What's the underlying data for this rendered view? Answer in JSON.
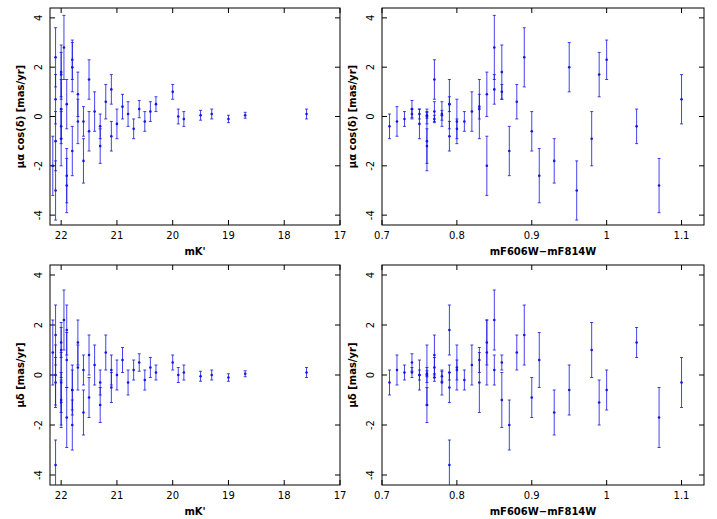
{
  "chart_data": [
    {
      "type": "scatter",
      "x_label": "mK'",
      "y_label": "μα cos(δ) [mas/yr]",
      "color": "#1414e6",
      "marker": "errorbar",
      "xlim": [
        22.2,
        17
      ],
      "ylim": [
        -4.4,
        4.4
      ],
      "xticks": [
        22,
        21,
        20,
        19,
        18,
        17
      ],
      "yticks": [
        -4,
        -2,
        0,
        2,
        4
      ],
      "x": [
        17.6,
        18.7,
        19.0,
        19.3,
        19.5,
        19.8,
        19.9,
        20.0,
        20.3,
        20.4,
        20.5,
        20.6,
        20.7,
        20.8,
        20.9,
        21.0,
        21.1,
        21.1,
        21.2,
        21.3,
        21.4,
        21.5,
        21.5,
        21.6,
        21.7,
        21.7,
        21.8,
        21.8,
        21.9,
        21.9,
        22.0,
        22.0,
        22.0,
        22.1,
        22.1,
        22.1,
        22.0,
        21.9,
        22.1,
        21.8,
        22.0,
        21.6,
        21.3,
        22.15,
        21.95
      ],
      "values": [
        0.1,
        0.05,
        -0.1,
        0.1,
        0.05,
        -0.1,
        0.0,
        1.0,
        0.5,
        0.2,
        -0.2,
        0.3,
        -0.5,
        0.1,
        0.4,
        -0.3,
        1.1,
        -0.8,
        0.6,
        -1.2,
        0.2,
        -0.6,
        1.5,
        -1.8,
        0.9,
        -0.2,
        2.0,
        -1.4,
        0.5,
        -2.4,
        1.8,
        -0.9,
        0.3,
        -3.0,
        2.4,
        -1.0,
        -0.4,
        -2.8,
        0.7,
        2.3,
        1.7,
        -0.2,
        -0.4,
        -2.0,
        2.8
      ],
      "errors": [
        0.2,
        0.12,
        0.15,
        0.2,
        0.2,
        0.3,
        0.3,
        0.3,
        0.3,
        0.4,
        0.4,
        0.35,
        0.4,
        0.5,
        0.5,
        0.6,
        0.6,
        0.6,
        0.7,
        0.7,
        0.8,
        0.8,
        0.8,
        0.9,
        0.9,
        0.9,
        1.0,
        1.0,
        1.0,
        1.1,
        1.1,
        1.1,
        1.2,
        1.2,
        1.2,
        1.2,
        0.7,
        1.1,
        1.0,
        0.8,
        0.9,
        0.6,
        0.5,
        1.2,
        1.3
      ]
    },
    {
      "type": "scatter",
      "x_label": "mF606W−mF814W",
      "y_label": "μα cos(δ) [mas/yr]",
      "color": "#1414e6",
      "marker": "errorbar",
      "xlim": [
        0.7,
        1.13
      ],
      "ylim": [
        -4.4,
        4.4
      ],
      "xticks": [
        0.7,
        0.8,
        0.9,
        1,
        1.1
      ],
      "yticks": [
        -4,
        -2,
        0,
        2,
        4
      ],
      "x": [
        0.74,
        0.76,
        0.77,
        0.75,
        0.78,
        0.73,
        0.76,
        0.86,
        0.79,
        0.77,
        0.81,
        0.74,
        0.8,
        0.78,
        0.83,
        0.75,
        0.85,
        0.79,
        0.88,
        0.76,
        0.82,
        0.9,
        0.77,
        0.93,
        0.84,
        0.8,
        0.95,
        0.87,
        0.79,
        0.91,
        0.86,
        0.98,
        0.83,
        0.96,
        0.89,
        0.76,
        1.04,
        1.07,
        1.1,
        1.0,
        0.99,
        0.72,
        0.71,
        0.84,
        0.85
      ],
      "values": [
        0.1,
        0.05,
        -0.1,
        0.1,
        0.05,
        -0.1,
        0.0,
        1.0,
        0.5,
        0.2,
        -0.2,
        0.3,
        -0.5,
        0.1,
        0.4,
        -0.3,
        1.1,
        -0.8,
        0.6,
        -1.2,
        0.2,
        -0.6,
        1.5,
        -1.8,
        0.9,
        -0.2,
        2.0,
        -1.4,
        0.5,
        -2.4,
        1.8,
        -0.9,
        0.3,
        -3.0,
        2.4,
        -1.0,
        -0.4,
        -2.8,
        0.7,
        2.3,
        1.7,
        -0.2,
        -0.4,
        -2.0,
        2.8
      ],
      "errors": [
        0.2,
        0.12,
        0.15,
        0.2,
        0.2,
        0.3,
        0.3,
        0.3,
        0.3,
        0.4,
        0.4,
        0.35,
        0.4,
        0.5,
        0.5,
        0.6,
        0.6,
        0.6,
        0.7,
        0.7,
        0.8,
        0.8,
        0.8,
        0.9,
        0.9,
        0.9,
        1.0,
        1.0,
        1.0,
        1.1,
        1.1,
        1.1,
        1.2,
        1.2,
        1.2,
        1.2,
        0.7,
        1.1,
        1.0,
        0.8,
        0.9,
        0.6,
        0.5,
        1.2,
        1.3
      ]
    },
    {
      "type": "scatter",
      "x_label": "mK'",
      "y_label": "μδ [mas/yr]",
      "color": "#1414e6",
      "marker": "errorbar",
      "xlim": [
        22.2,
        17
      ],
      "ylim": [
        -4.4,
        4.4
      ],
      "xticks": [
        22,
        21,
        20,
        19,
        18,
        17
      ],
      "yticks": [
        -4,
        -2,
        0,
        2,
        4
      ],
      "x": [
        17.6,
        18.7,
        19.0,
        19.3,
        19.5,
        19.8,
        19.9,
        20.0,
        20.3,
        20.4,
        20.5,
        20.6,
        20.7,
        20.8,
        20.9,
        21.0,
        21.1,
        21.1,
        21.2,
        21.3,
        21.4,
        21.5,
        21.5,
        21.6,
        21.7,
        21.7,
        21.8,
        21.8,
        21.9,
        21.9,
        22.0,
        22.0,
        22.0,
        22.1,
        22.1,
        22.1,
        22.0,
        21.9,
        22.1,
        21.8,
        22.0,
        21.6,
        21.3,
        22.15,
        21.95
      ],
      "values": [
        0.1,
        0.05,
        -0.1,
        0.0,
        -0.05,
        0.1,
        0.0,
        0.5,
        0.1,
        0.3,
        -0.2,
        0.5,
        0.2,
        -0.3,
        0.6,
        0.0,
        0.2,
        -0.5,
        0.9,
        -1.2,
        0.4,
        -0.9,
        0.8,
        -1.5,
        1.3,
        0.3,
        -0.6,
        -2.0,
        1.8,
        0.6,
        -1.0,
        1.0,
        -0.3,
        -3.6,
        1.6,
        0.0,
        1.3,
        -1.7,
        -0.3,
        -0.6,
        -1.1,
        0.2,
        -0.3,
        0.9,
        2.2
      ],
      "errors": [
        0.2,
        0.12,
        0.15,
        0.2,
        0.2,
        0.3,
        0.3,
        0.3,
        0.3,
        0.4,
        0.4,
        0.35,
        0.4,
        0.5,
        0.5,
        0.6,
        0.6,
        0.6,
        0.7,
        0.7,
        0.8,
        0.8,
        0.8,
        0.9,
        0.9,
        0.9,
        1.0,
        1.0,
        1.0,
        1.1,
        1.1,
        1.1,
        1.2,
        1.0,
        1.2,
        1.2,
        0.6,
        1.2,
        1.0,
        0.8,
        0.9,
        0.6,
        0.5,
        1.3,
        1.2
      ]
    },
    {
      "type": "scatter",
      "x_label": "mF606W−mF814W",
      "y_label": "μδ [mas/yr]",
      "color": "#1414e6",
      "marker": "errorbar",
      "xlim": [
        0.7,
        1.13
      ],
      "ylim": [
        -4.4,
        4.4
      ],
      "xticks": [
        0.7,
        0.8,
        0.9,
        1,
        1.1
      ],
      "yticks": [
        -4,
        -2,
        0,
        2,
        4
      ],
      "x": [
        0.74,
        0.76,
        0.77,
        0.75,
        0.78,
        0.73,
        0.76,
        0.86,
        0.79,
        0.77,
        0.81,
        0.74,
        0.8,
        0.78,
        0.83,
        0.75,
        0.85,
        0.79,
        0.88,
        0.76,
        0.82,
        0.9,
        0.77,
        0.93,
        0.84,
        0.8,
        0.95,
        0.87,
        0.79,
        0.91,
        0.86,
        0.98,
        0.83,
        0.79,
        0.89,
        0.76,
        1.04,
        1.07,
        1.1,
        1.0,
        0.99,
        0.72,
        0.71,
        0.84,
        0.85
      ],
      "values": [
        0.1,
        0.05,
        -0.1,
        0.0,
        -0.05,
        0.1,
        0.0,
        0.5,
        0.1,
        0.3,
        -0.2,
        0.5,
        0.2,
        -0.3,
        0.6,
        0.0,
        0.2,
        -0.5,
        0.9,
        -1.2,
        0.4,
        -0.9,
        0.8,
        -1.5,
        1.3,
        0.3,
        -0.6,
        -2.0,
        1.8,
        0.6,
        -1.0,
        1.0,
        -0.3,
        -3.6,
        1.6,
        0.0,
        1.3,
        -1.7,
        -0.3,
        -0.6,
        -1.1,
        0.2,
        -0.3,
        0.9,
        2.2
      ],
      "errors": [
        0.2,
        0.12,
        0.15,
        0.2,
        0.2,
        0.3,
        0.3,
        0.3,
        0.3,
        0.4,
        0.4,
        0.35,
        0.4,
        0.5,
        0.5,
        0.6,
        0.6,
        0.6,
        0.7,
        0.7,
        0.8,
        0.8,
        0.8,
        0.9,
        0.9,
        0.9,
        1.0,
        1.0,
        1.0,
        1.1,
        1.1,
        1.1,
        1.2,
        1.0,
        1.2,
        1.2,
        0.6,
        1.2,
        1.0,
        0.8,
        0.9,
        0.6,
        0.5,
        1.3,
        1.2
      ]
    }
  ]
}
